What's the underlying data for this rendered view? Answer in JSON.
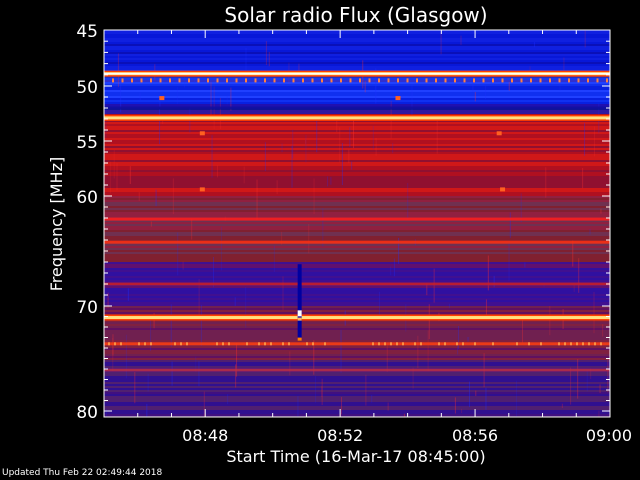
{
  "chart_data": {
    "type": "heatmap",
    "title": "Solar radio Flux (Glasgow)",
    "xlabel": "Start Time (16-Mar-17 08:45:00)",
    "ylabel": "Frequency [MHz]",
    "x_ticks": [
      "08:48",
      "08:52",
      "08:56",
      "09:00"
    ],
    "x_tick_minutes": [
      3,
      7,
      11,
      15
    ],
    "xlim_minutes": [
      0,
      15
    ],
    "y_ticks": [
      45,
      50,
      55,
      60,
      70,
      80
    ],
    "ylim": [
      45,
      80
    ],
    "colormap": "blue-purple-red-yellow-white",
    "notes_bands_mhz": [
      {
        "freq": 48.9,
        "level": "high"
      },
      {
        "freq": 52.9,
        "level": "high"
      },
      {
        "freq": 71.1,
        "level": "high"
      }
    ],
    "burst": {
      "time_minutes": 5.8,
      "freq_range": [
        66.2,
        73.2
      ]
    }
  },
  "footer_text": "Updated Thu Feb 22 02:49:44 2018",
  "colors": {
    "low": "#0010c8",
    "mid_low": "#4010a0",
    "mid": "#901030",
    "high": "#ff2000",
    "peak": "#ffffff"
  }
}
